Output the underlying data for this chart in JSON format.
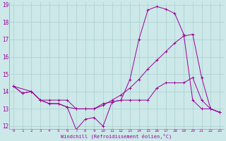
{
  "xlabel": "Windchill (Refroidissement éolien,°C)",
  "bg_color": "#cce8e8",
  "grid_color": "#aacfcf",
  "line_color": "#990099",
  "ylim": [
    12,
    19
  ],
  "xlim": [
    0,
    23
  ],
  "yticks": [
    12,
    13,
    14,
    15,
    16,
    17,
    18,
    19
  ],
  "xticks": [
    0,
    1,
    2,
    3,
    4,
    5,
    6,
    7,
    8,
    9,
    10,
    11,
    12,
    13,
    14,
    15,
    16,
    17,
    18,
    19,
    20,
    21,
    22,
    23
  ],
  "line1_x": [
    0,
    1,
    2,
    3,
    4,
    5,
    6,
    7,
    8,
    9,
    10,
    11,
    12,
    13,
    14,
    15,
    16,
    17,
    18,
    19,
    20,
    21,
    22,
    23
  ],
  "line1_y": [
    14.3,
    13.9,
    14.0,
    13.5,
    13.3,
    13.3,
    13.1,
    11.8,
    12.4,
    12.5,
    12.0,
    13.4,
    13.5,
    14.7,
    17.0,
    18.7,
    18.9,
    18.75,
    18.5,
    17.3,
    13.5,
    13.0,
    13.0,
    12.8
  ],
  "line2_x": [
    0,
    1,
    2,
    3,
    4,
    5,
    6,
    7,
    8,
    9,
    10,
    11,
    12,
    13,
    14,
    15,
    16,
    17,
    18,
    19,
    20,
    21,
    22,
    23
  ],
  "line2_y": [
    14.3,
    13.9,
    14.0,
    13.5,
    13.3,
    13.3,
    13.1,
    13.0,
    13.0,
    13.0,
    13.3,
    13.4,
    13.5,
    13.5,
    13.5,
    13.5,
    14.2,
    14.5,
    14.5,
    14.5,
    14.8,
    13.5,
    13.0,
    12.8
  ],
  "line3_x": [
    0,
    2,
    3,
    4,
    5,
    6,
    7,
    8,
    9,
    10,
    11,
    12,
    13,
    14,
    15,
    16,
    17,
    18,
    19,
    20,
    21,
    22,
    23
  ],
  "line3_y": [
    14.3,
    14.0,
    13.5,
    13.5,
    13.5,
    13.5,
    13.0,
    13.0,
    13.0,
    13.2,
    13.5,
    13.8,
    14.2,
    14.7,
    15.3,
    15.8,
    16.3,
    16.8,
    17.2,
    17.3,
    14.8,
    13.0,
    12.8
  ]
}
